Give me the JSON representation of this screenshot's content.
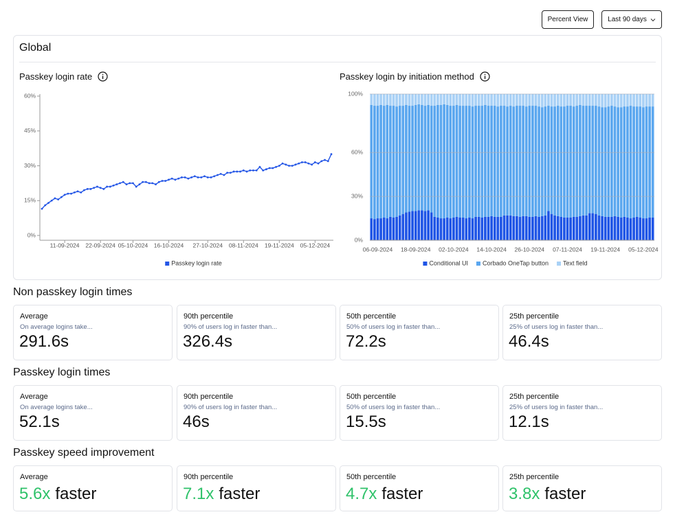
{
  "toolbar": {
    "percent_view": "Percent View",
    "range": "Last 90 days"
  },
  "global": {
    "title": "Global"
  },
  "chart_data": [
    {
      "type": "line",
      "title": "Passkey login rate",
      "categories": [
        null,
        null,
        null,
        null,
        null,
        null,
        null,
        "11-09-2024",
        null,
        null,
        null,
        null,
        null,
        null,
        null,
        null,
        null,
        null,
        "22-09-2024",
        null,
        null,
        null,
        null,
        null,
        null,
        null,
        null,
        null,
        "05-10-2024",
        null,
        null,
        null,
        null,
        null,
        null,
        null,
        null,
        null,
        null,
        "16-10-2024",
        null,
        null,
        null,
        null,
        null,
        null,
        null,
        null,
        null,
        null,
        null,
        "27-10-2024",
        null,
        null,
        null,
        null,
        null,
        null,
        null,
        null,
        null,
        null,
        "08-11-2024",
        null,
        null,
        null,
        null,
        null,
        null,
        null,
        null,
        null,
        null,
        "19-11-2024",
        null,
        null,
        null,
        null,
        null,
        null,
        null,
        null,
        null,
        null,
        "05-12-2024",
        null,
        null,
        null,
        null,
        null
      ],
      "series": [
        {
          "name": "Passkey login rate",
          "color": "#2456e6",
          "values": [
            11.5,
            13,
            14,
            15,
            16,
            15.5,
            16.5,
            17.5,
            18,
            18,
            18.5,
            19,
            18.5,
            19.5,
            20,
            20,
            20.5,
            21,
            20.5,
            20,
            21,
            21,
            21.5,
            22,
            22.5,
            23,
            22,
            22.5,
            22.5,
            21,
            22,
            23,
            23,
            22.5,
            22.5,
            22,
            23,
            23.5,
            23.5,
            24,
            24.5,
            24,
            24.5,
            25,
            25,
            24.5,
            25,
            25.5,
            25,
            25,
            25.5,
            25,
            25,
            25.5,
            26,
            26.5,
            26,
            27,
            27,
            27.5,
            27.5,
            27.5,
            28,
            27.5,
            28,
            28,
            28,
            29.5,
            28,
            28.5,
            29,
            29,
            29.5,
            30,
            31,
            30.5,
            30,
            30,
            30.5,
            31,
            31.5,
            31.5,
            31,
            30.5,
            31.5,
            31,
            32,
            32.5,
            32,
            35
          ]
        }
      ],
      "ylim": [
        0,
        60
      ],
      "yticks": [
        {
          "value": 0,
          "label": "0%"
        },
        {
          "value": 15,
          "label": "15%"
        },
        {
          "value": 30,
          "label": "30%"
        },
        {
          "value": 45,
          "label": "45%"
        },
        {
          "value": 60,
          "label": "60%"
        }
      ],
      "grid": false
    },
    {
      "type": "bar",
      "title": "Passkey login by initiation method",
      "stacked": true,
      "categories": [
        null,
        null,
        "06-09-2024",
        null,
        null,
        null,
        null,
        null,
        null,
        null,
        null,
        null,
        null,
        null,
        "18-09-2024",
        null,
        null,
        null,
        null,
        null,
        null,
        null,
        null,
        null,
        null,
        null,
        "02-10-2024",
        null,
        null,
        null,
        null,
        null,
        null,
        null,
        null,
        null,
        null,
        null,
        "14-10-2024",
        null,
        null,
        null,
        null,
        null,
        null,
        null,
        null,
        null,
        null,
        null,
        "26-10-2024",
        null,
        null,
        null,
        null,
        null,
        null,
        null,
        null,
        null,
        null,
        null,
        "07-11-2024",
        null,
        null,
        null,
        null,
        null,
        null,
        null,
        null,
        null,
        null,
        null,
        "19-11-2024",
        null,
        null,
        null,
        null,
        null,
        null,
        null,
        null,
        null,
        null,
        null,
        "05-12-2024",
        null,
        null,
        null
      ],
      "series": [
        {
          "name": "Conditional UI",
          "color": "#1f55e6",
          "values": [
            15,
            14.5,
            15,
            15,
            15.5,
            15,
            16,
            15.5,
            16,
            17,
            18,
            19,
            19.5,
            20,
            20,
            20.5,
            20.5,
            20,
            20.5,
            19,
            16,
            15.5,
            15,
            15,
            15.5,
            15,
            15.5,
            16,
            15.5,
            15.5,
            15,
            15.5,
            15,
            16,
            16,
            15.5,
            16,
            16,
            16.5,
            16,
            16,
            16,
            17,
            17,
            17,
            16.5,
            16.5,
            16,
            16.5,
            16.5,
            16,
            16,
            16.5,
            16,
            16.5,
            17,
            20,
            18,
            17,
            16.5,
            16,
            15.5,
            15.5,
            15.5,
            16,
            16,
            16.5,
            17,
            17,
            18.5,
            18.5,
            18,
            17,
            16.5,
            16,
            16,
            16,
            16.5,
            16,
            15.5,
            16,
            15.5,
            15,
            15.5,
            16,
            15.5,
            15,
            15,
            15.5,
            15.5
          ]
        },
        {
          "name": "Corbado OneTap button",
          "color": "#5ba7ef",
          "values": [
            77.5,
            77.5,
            77,
            77.5,
            76.5,
            77.5,
            76,
            76.5,
            75.5,
            75,
            74,
            73.5,
            72.5,
            72,
            72.5,
            72.5,
            72,
            72,
            72,
            73,
            76,
            77,
            77.5,
            78,
            77,
            77,
            76.5,
            76.5,
            76.5,
            76.5,
            77,
            76.5,
            76.5,
            76,
            76,
            76.5,
            76.5,
            76,
            75.5,
            76,
            75.5,
            76,
            75,
            74.5,
            75,
            75,
            75.5,
            76,
            75.5,
            75,
            76,
            76,
            75.5,
            75.5,
            74.5,
            74.5,
            72,
            73.5,
            74.5,
            75.5,
            75.5,
            76,
            76.5,
            76.5,
            75.5,
            76,
            76,
            75,
            75,
            73.5,
            73.5,
            74,
            74.5,
            74.5,
            75,
            75.5,
            76,
            75,
            75,
            75.5,
            75.5,
            76,
            77,
            76,
            75.5,
            76,
            76,
            76.5,
            76,
            76
          ]
        },
        {
          "name": "Text field",
          "color": "#a9d1f6",
          "values": [
            7.5,
            8,
            8,
            7.5,
            8,
            7.5,
            8,
            8,
            8.5,
            8,
            8,
            7.5,
            8,
            8,
            7.5,
            7,
            7.5,
            8,
            7.5,
            8,
            8,
            7.5,
            7.5,
            7,
            7.5,
            8,
            8,
            7.5,
            8,
            8,
            8,
            8,
            8.5,
            8,
            8,
            8,
            7.5,
            8,
            8,
            8,
            8.5,
            8,
            8,
            8.5,
            8,
            8.5,
            8,
            8,
            8,
            8.5,
            8,
            8,
            8,
            8.5,
            9,
            8.5,
            8,
            8.5,
            8.5,
            8,
            8.5,
            8.5,
            8,
            8,
            8.5,
            8,
            7.5,
            8,
            8,
            8,
            8,
            8,
            8.5,
            9,
            9,
            8.5,
            8,
            8.5,
            9,
            9,
            8.5,
            8.5,
            8,
            8.5,
            8.5,
            8.5,
            9,
            8.5,
            8.5,
            8.5
          ]
        }
      ],
      "ylim": [
        0,
        100
      ],
      "yticks": [
        {
          "value": 0,
          "label": "0%"
        },
        {
          "value": 30,
          "label": "30%"
        },
        {
          "value": 60,
          "label": "60%"
        },
        {
          "value": 100,
          "label": "100%"
        }
      ],
      "grid": true
    }
  ],
  "sections": [
    {
      "title": "Non passkey login times",
      "cards": [
        {
          "label": "Average",
          "subtitle": "On average logins take...",
          "value": "291.6s"
        },
        {
          "label": "90th percentile",
          "subtitle": "90% of users log in faster than...",
          "value": "326.4s"
        },
        {
          "label": "50th percentile",
          "subtitle": "50% of users log in faster than...",
          "value": "72.2s"
        },
        {
          "label": "25th percentile",
          "subtitle": "25% of users log in faster than...",
          "value": "46.4s"
        }
      ]
    },
    {
      "title": "Passkey login times",
      "cards": [
        {
          "label": "Average",
          "subtitle": "On average logins take...",
          "value": "52.1s"
        },
        {
          "label": "90th percentile",
          "subtitle": "90% of users log in faster than...",
          "value": "46s"
        },
        {
          "label": "50th percentile",
          "subtitle": "50% of users log in faster than...",
          "value": "15.5s"
        },
        {
          "label": "25th percentile",
          "subtitle": "25% of users log in faster than...",
          "value": "12.1s"
        }
      ]
    },
    {
      "title": "Passkey speed improvement",
      "cards": [
        {
          "label": "Average",
          "value": "5.6x",
          "suffix": "faster"
        },
        {
          "label": "90th percentile",
          "value": "7.1x",
          "suffix": "faster"
        },
        {
          "label": "50th percentile",
          "value": "4.7x",
          "suffix": "faster"
        },
        {
          "label": "25th percentile",
          "value": "3.8x",
          "suffix": "faster"
        }
      ]
    }
  ]
}
